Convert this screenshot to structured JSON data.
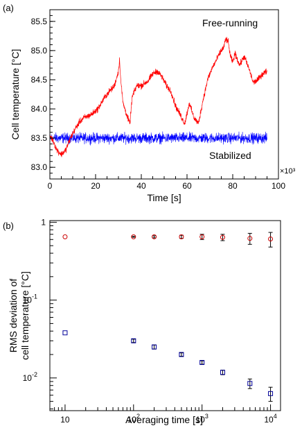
{
  "chart_data": [
    {
      "panel_label": "(a)",
      "type": "line",
      "xlabel": "Time [s]",
      "ylabel": "Cell temperature [°C]",
      "xlim": [
        0,
        100000
      ],
      "ylim": [
        82.8,
        85.7
      ],
      "x_ticks": [
        "0",
        "20",
        "40",
        "60",
        "80",
        "100"
      ],
      "x_tick_values": [
        0,
        20000,
        40000,
        60000,
        80000,
        100000
      ],
      "x_multiplier": "×10³",
      "y_ticks": [
        "83.0",
        "83.5",
        "84.0",
        "84.5",
        "85.0",
        "85.5"
      ],
      "y_tick_values": [
        83.0,
        83.5,
        84.0,
        84.5,
        85.0,
        85.5
      ],
      "grid": false,
      "series": [
        {
          "name": "Free-running",
          "color": "#ff0000",
          "noise": 0.04,
          "x": [
            0,
            1500,
            3000,
            5000,
            7000,
            9000,
            11000,
            13000,
            15000,
            18000,
            21000,
            24000,
            26000,
            28000,
            29000,
            30000,
            30500,
            31000,
            32000,
            34000,
            35000,
            36000,
            38000,
            40000,
            43000,
            45000,
            47000,
            49000,
            51000,
            53000,
            55000,
            57000,
            59000,
            61000,
            63000,
            65000,
            67000,
            69000,
            71000,
            73000,
            75000,
            76000,
            77000,
            78000,
            79000,
            80000,
            81000,
            83000,
            85000,
            87000,
            89000,
            91000,
            93000,
            95000
          ],
          "y": [
            83.55,
            83.45,
            83.3,
            83.22,
            83.3,
            83.5,
            83.65,
            83.78,
            83.85,
            83.9,
            84.0,
            84.2,
            84.3,
            84.38,
            84.5,
            84.65,
            84.85,
            84.5,
            84.1,
            83.85,
            83.75,
            84.2,
            84.4,
            84.4,
            84.48,
            84.6,
            84.65,
            84.55,
            84.4,
            84.3,
            84.05,
            83.9,
            83.75,
            84.1,
            83.85,
            83.75,
            84.15,
            84.5,
            84.7,
            84.85,
            85.0,
            85.05,
            85.2,
            85.15,
            84.9,
            84.8,
            84.95,
            84.75,
            84.9,
            84.7,
            84.45,
            84.5,
            84.6,
            84.65
          ]
        },
        {
          "name": "Stabilized",
          "color": "#0000ff",
          "mean": 83.5,
          "noise": 0.12,
          "x_start": 0,
          "x_end": 95000
        }
      ]
    },
    {
      "panel_label": "(b)",
      "type": "scatter",
      "xlabel": "Averaging time [s]",
      "ylabel": [
        "RMS deviation of",
        "cell temperature [°C]"
      ],
      "x_scale": "log",
      "y_scale": "log",
      "xlim": [
        6,
        14000
      ],
      "ylim": [
        0.0038,
        1.05
      ],
      "x_ticks": [
        {
          "v": 10,
          "base": "10",
          "exp": ""
        },
        {
          "v": 100,
          "base": "10",
          "exp": "2"
        },
        {
          "v": 1000,
          "base": "10",
          "exp": "3"
        },
        {
          "v": 10000,
          "base": "10",
          "exp": "4"
        }
      ],
      "y_ticks": [
        {
          "v": 1,
          "base": "1",
          "exp": ""
        },
        {
          "v": 0.1,
          "base": "10",
          "exp": "-1"
        },
        {
          "v": 0.01,
          "base": "10",
          "exp": "-2"
        }
      ],
      "grid": false,
      "series": [
        {
          "name": "Free-running",
          "color": "#cc0000",
          "marker": "circle",
          "x": [
            10,
            100,
            200,
            500,
            1000,
            2000,
            5000,
            10000
          ],
          "y": [
            0.65,
            0.65,
            0.65,
            0.65,
            0.65,
            0.64,
            0.62,
            0.61
          ],
          "err": [
            0.0,
            0.01,
            0.02,
            0.03,
            0.05,
            0.06,
            0.1,
            0.13
          ]
        },
        {
          "name": "Stabilized",
          "color": "#000099",
          "marker": "square",
          "x": [
            10,
            100,
            200,
            500,
            1000,
            2000,
            5000,
            10000
          ],
          "y": [
            0.038,
            0.03,
            0.025,
            0.02,
            0.0158,
            0.0118,
            0.0085,
            0.0063
          ],
          "err": [
            0.0,
            0.0015,
            0.0015,
            0.001,
            0.0008,
            0.0008,
            0.0012,
            0.0013
          ]
        }
      ]
    }
  ]
}
